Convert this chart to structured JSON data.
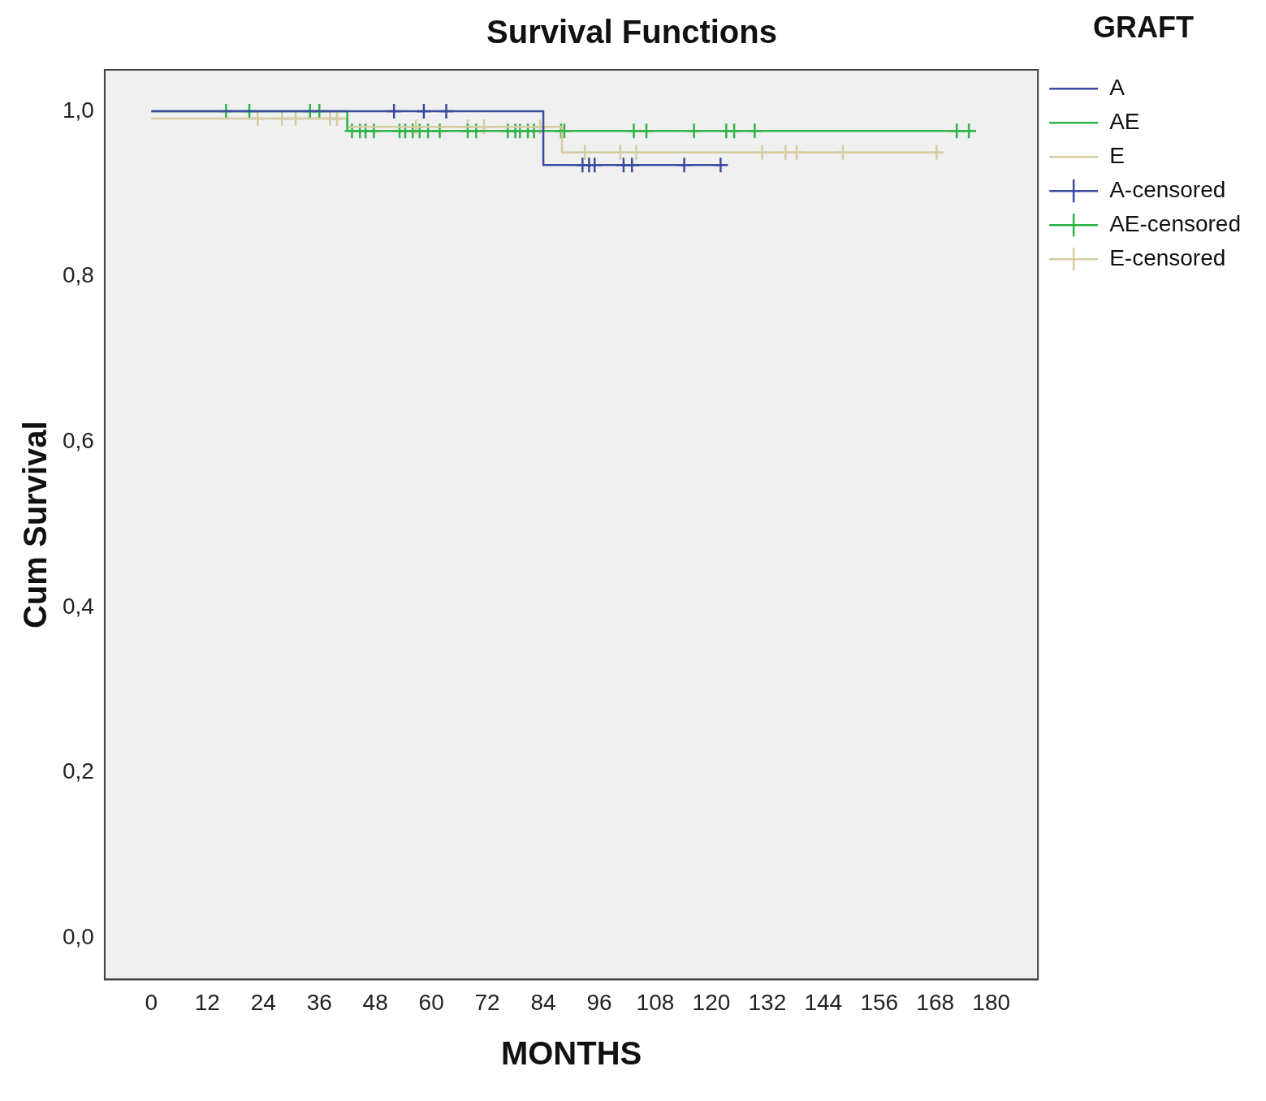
{
  "chart_data": {
    "type": "step",
    "title": "Survival Functions",
    "xlabel": "MONTHS",
    "ylabel": "Cum Survival",
    "legend_title": "GRAFT",
    "legend": "top right",
    "grid": false,
    "xlim": [
      -10,
      190
    ],
    "xticks": [
      0,
      12,
      24,
      36,
      48,
      60,
      72,
      84,
      96,
      108,
      120,
      132,
      144,
      156,
      168,
      180
    ],
    "ylim": [
      -0.05,
      1.05
    ],
    "yticks": [
      {
        "value": 0,
        "label": "0,0"
      },
      {
        "value": 0.2,
        "label": "0,2"
      },
      {
        "value": 0.4,
        "label": "0,4"
      },
      {
        "value": 0.6,
        "label": "0,6"
      },
      {
        "value": 0.8,
        "label": "0,8"
      },
      {
        "value": 1,
        "label": "1,0"
      }
    ],
    "series": [
      {
        "name": "A",
        "type": "step",
        "color": "#3b4a9e",
        "x": [
          0,
          84,
          122.8
        ],
        "values": [
          1,
          0.935,
          0.935
        ]
      },
      {
        "name": "AE",
        "type": "step",
        "color": "#2fb34a",
        "x": [
          0,
          42,
          176.4
        ],
        "values": [
          1,
          0.976,
          0.976
        ]
      },
      {
        "name": "E",
        "type": "step",
        "color": "#d6cba0",
        "x": [
          0,
          42,
          88,
          169
        ],
        "values": [
          0.991,
          0.981,
          0.95,
          0.95
        ]
      },
      {
        "name": "A-censored",
        "type": "scatter",
        "marker": "cross",
        "color": "#3b4a9e",
        "x": [
          52,
          58.4,
          63.2,
          92.4,
          93.8,
          95,
          101.2,
          103,
          114.2,
          122
        ],
        "values": [
          1,
          1,
          1,
          0.935,
          0.935,
          0.935,
          0.935,
          0.935,
          0.935,
          0.935
        ]
      },
      {
        "name": "AE-censored",
        "type": "scatter",
        "marker": "cross",
        "color": "#2fb34a",
        "x": [
          16,
          21,
          34,
          36,
          43,
          44.7,
          45.9,
          47.7,
          53.2,
          54.4,
          56,
          57.5,
          59.3,
          61.8,
          67.8,
          69.6,
          76.4,
          78,
          79,
          80.7,
          82,
          87.8,
          88.5,
          103.4,
          106.1,
          116.3,
          123.2,
          124.9,
          129.3,
          172.6,
          175.2
        ],
        "values": [
          1,
          1,
          1,
          1,
          0.976,
          0.976,
          0.976,
          0.976,
          0.976,
          0.976,
          0.976,
          0.976,
          0.976,
          0.976,
          0.976,
          0.976,
          0.976,
          0.976,
          0.976,
          0.976,
          0.976,
          0.976,
          0.976,
          0.976,
          0.976,
          0.976,
          0.976,
          0.976,
          0.976,
          0.976,
          0.976
        ]
      },
      {
        "name": "E-censored",
        "type": "scatter",
        "marker": "cross",
        "color": "#d6cba0",
        "x": [
          22.8,
          28,
          30.9,
          38.3,
          39.8,
          56.7,
          67.8,
          71.3,
          83.3,
          92.9,
          100.5,
          103.9,
          130.9,
          135.9,
          138.3,
          148.2,
          168.3
        ],
        "values": [
          0.991,
          0.991,
          0.991,
          0.991,
          0.991,
          0.981,
          0.981,
          0.981,
          0.981,
          0.95,
          0.95,
          0.95,
          0.95,
          0.95,
          0.95,
          0.95,
          0.95
        ]
      }
    ]
  }
}
